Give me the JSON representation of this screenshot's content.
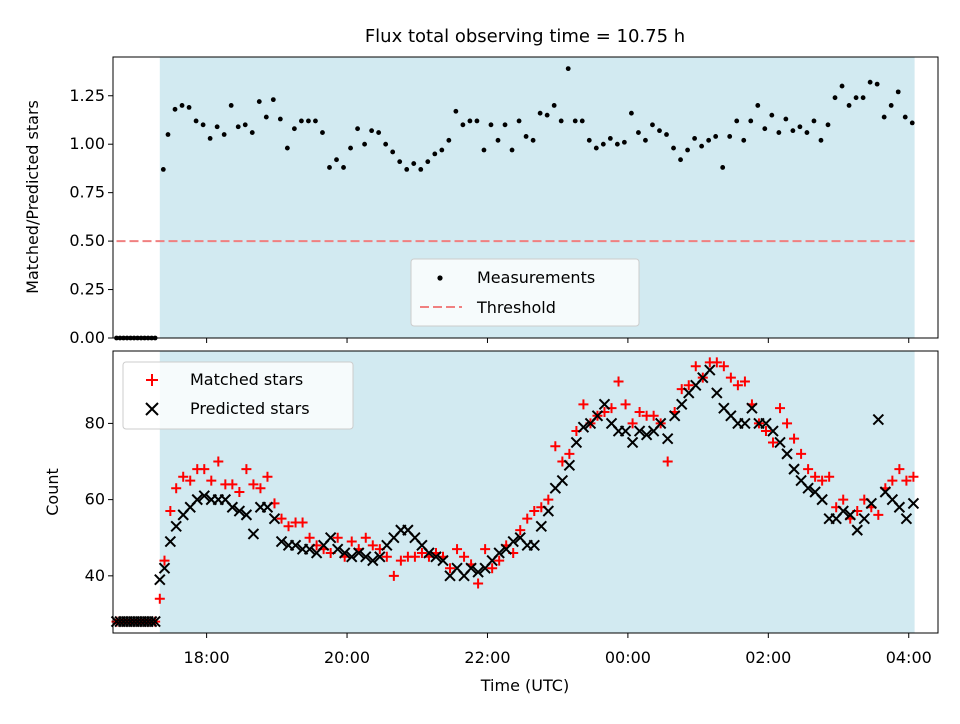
{
  "title": "Flux total observing time = 10.75 h",
  "colors": {
    "shade": "#add8e6",
    "measurement": "#000000",
    "threshold": "#f08080",
    "matched": "#ff0000",
    "predicted": "#000000"
  },
  "chart_data": [
    {
      "type": "scatter",
      "ylabel": "Matched/Predicted stars",
      "xlabel": "",
      "xlim": [
        "16:40",
        "04:25"
      ],
      "ylim": [
        0,
        1.45
      ],
      "xticks": [
        "18:00",
        "20:00",
        "22:00",
        "00:00",
        "02:00",
        "04:00"
      ],
      "yticks": [
        "0.00",
        "0.25",
        "0.50",
        "0.75",
        "1.00",
        "1.25"
      ],
      "shaded_interval": [
        "17:20",
        "04:05"
      ],
      "threshold": {
        "name": "Threshold",
        "value": 0.5,
        "x_range": [
          "16:43",
          "04:05"
        ]
      },
      "legend": {
        "position": "lower center",
        "entries": [
          "Measurements",
          "Threshold"
        ]
      },
      "series": [
        {
          "name": "Measurements",
          "x": [
            "16:43",
            "16:46",
            "16:49",
            "16:52",
            "16:55",
            "16:58",
            "17:01",
            "17:04",
            "17:07",
            "17:10",
            "17:13",
            "17:16",
            "17:23",
            "17:27",
            "17:33",
            "17:39",
            "17:45",
            "17:51",
            "17:57",
            "18:03",
            "18:09",
            "18:15",
            "18:21",
            "18:27",
            "18:33",
            "18:39",
            "18:45",
            "18:51",
            "18:57",
            "19:03",
            "19:09",
            "19:15",
            "19:21",
            "19:27",
            "19:33",
            "19:39",
            "19:45",
            "19:51",
            "19:57",
            "20:03",
            "20:09",
            "20:15",
            "20:21",
            "20:27",
            "20:33",
            "20:39",
            "20:45",
            "20:51",
            "20:57",
            "21:03",
            "21:09",
            "21:15",
            "21:21",
            "21:27",
            "21:33",
            "21:39",
            "21:45",
            "21:51",
            "21:57",
            "22:03",
            "22:09",
            "22:15",
            "22:21",
            "22:27",
            "22:33",
            "22:39",
            "22:45",
            "22:51",
            "22:57",
            "23:03",
            "23:09",
            "23:15",
            "23:21",
            "23:27",
            "23:33",
            "23:39",
            "23:45",
            "23:51",
            "23:57",
            "00:03",
            "00:09",
            "00:15",
            "00:21",
            "00:27",
            "00:33",
            "00:39",
            "00:45",
            "00:51",
            "00:57",
            "01:03",
            "01:09",
            "01:15",
            "01:21",
            "01:27",
            "01:33",
            "01:39",
            "01:45",
            "01:51",
            "01:57",
            "02:03",
            "02:09",
            "02:15",
            "02:21",
            "02:27",
            "02:33",
            "02:39",
            "02:45",
            "02:51",
            "02:57",
            "03:03",
            "03:09",
            "03:15",
            "03:21",
            "03:27",
            "03:33",
            "03:39",
            "03:45",
            "03:51",
            "03:57",
            "04:03"
          ],
          "y": [
            0,
            0,
            0,
            0,
            0,
            0,
            0,
            0,
            0,
            0,
            0,
            0,
            0.87,
            1.05,
            1.18,
            1.2,
            1.19,
            1.12,
            1.1,
            1.03,
            1.09,
            1.05,
            1.2,
            1.09,
            1.1,
            1.06,
            1.22,
            1.14,
            1.23,
            1.13,
            0.98,
            1.08,
            1.12,
            1.12,
            1.12,
            1.06,
            0.88,
            0.92,
            0.88,
            0.98,
            1.08,
            1.0,
            1.07,
            1.06,
            1.0,
            0.96,
            0.91,
            0.87,
            0.9,
            0.87,
            0.91,
            0.95,
            0.97,
            1.02,
            1.17,
            1.1,
            1.12,
            1.12,
            0.97,
            1.1,
            1.02,
            1.1,
            0.97,
            1.12,
            1.04,
            1.02,
            1.16,
            1.15,
            1.2,
            1.12,
            1.39,
            1.12,
            1.12,
            1.02,
            0.98,
            1.0,
            1.03,
            1.0,
            1.01,
            1.16,
            1.06,
            1.02,
            1.1,
            1.07,
            1.05,
            0.98,
            0.92,
            0.97,
            1.03,
            0.99,
            1.02,
            1.04,
            0.88,
            1.04,
            1.12,
            1.02,
            1.12,
            1.2,
            1.08,
            1.15,
            1.06,
            1.13,
            1.07,
            1.09,
            1.06,
            1.12,
            1.02,
            1.1,
            1.24,
            1.3,
            1.2,
            1.24,
            1.24,
            1.32,
            1.31,
            1.14,
            1.2,
            1.27,
            1.14,
            1.11
          ]
        }
      ]
    },
    {
      "type": "scatter",
      "ylabel": "Count",
      "xlabel": "Time (UTC)",
      "xlim": [
        "16:40",
        "04:25"
      ],
      "ylim": [
        25,
        99
      ],
      "xticks": [
        "18:00",
        "20:00",
        "22:00",
        "00:00",
        "02:00",
        "04:00"
      ],
      "yticks": [
        "40",
        "60",
        "80"
      ],
      "shaded_interval": [
        "17:20",
        "04:05"
      ],
      "legend": {
        "position": "upper left",
        "entries": [
          "Matched stars",
          "Predicted stars"
        ]
      },
      "series": [
        {
          "name": "Matched stars",
          "x": [
            "16:43",
            "16:46",
            "16:49",
            "16:52",
            "16:55",
            "16:58",
            "17:01",
            "17:04",
            "17:07",
            "17:10",
            "17:13",
            "17:16",
            "17:20",
            "17:24",
            "17:29",
            "17:34",
            "17:40",
            "17:46",
            "17:52",
            "17:58",
            "18:04",
            "18:10",
            "18:16",
            "18:22",
            "18:28",
            "18:34",
            "18:40",
            "18:46",
            "18:52",
            "18:58",
            "19:04",
            "19:10",
            "19:16",
            "19:22",
            "19:28",
            "19:34",
            "19:40",
            "19:46",
            "19:52",
            "19:58",
            "20:04",
            "20:10",
            "20:16",
            "20:22",
            "20:28",
            "20:34",
            "20:40",
            "20:46",
            "20:52",
            "20:58",
            "21:04",
            "21:10",
            "21:16",
            "21:22",
            "21:28",
            "21:34",
            "21:40",
            "21:46",
            "21:52",
            "21:58",
            "22:04",
            "22:10",
            "22:16",
            "22:22",
            "22:28",
            "22:34",
            "22:40",
            "22:46",
            "22:52",
            "22:58",
            "23:04",
            "23:10",
            "23:16",
            "23:22",
            "23:28",
            "23:34",
            "23:40",
            "23:46",
            "23:52",
            "23:58",
            "00:04",
            "00:10",
            "00:16",
            "00:22",
            "00:28",
            "00:34",
            "00:40",
            "00:46",
            "00:52",
            "00:58",
            "01:04",
            "01:10",
            "01:16",
            "01:22",
            "01:28",
            "01:34",
            "01:40",
            "01:46",
            "01:52",
            "01:58",
            "02:04",
            "02:10",
            "02:16",
            "02:22",
            "02:28",
            "02:34",
            "02:40",
            "02:46",
            "02:52",
            "02:58",
            "03:04",
            "03:10",
            "03:16",
            "03:22",
            "03:28",
            "03:34",
            "03:40",
            "03:46",
            "03:52",
            "03:58",
            "04:04"
          ],
          "y": [
            28,
            28,
            28,
            28,
            28,
            28,
            28,
            28,
            28,
            28,
            28,
            28,
            34,
            44,
            57,
            63,
            66,
            65,
            68,
            68,
            65,
            70,
            64,
            64,
            62,
            68,
            64,
            63,
            66,
            59,
            55,
            53,
            54,
            54,
            50,
            48,
            47,
            46,
            50,
            45,
            49,
            47,
            50,
            48,
            47,
            45,
            40,
            44,
            45,
            45,
            46,
            45,
            46,
            45,
            42,
            47,
            45,
            43,
            38,
            47,
            42,
            44,
            48,
            46,
            52,
            55,
            57,
            58,
            60,
            74,
            70,
            72,
            78,
            85,
            80,
            82,
            83,
            84,
            91,
            85,
            80,
            83,
            82,
            82,
            80,
            70,
            83,
            89,
            90,
            95,
            92,
            96,
            96,
            95,
            92,
            90,
            91,
            85,
            80,
            78,
            75,
            84,
            80,
            76,
            72,
            68,
            66,
            65,
            66,
            58,
            60,
            55,
            57,
            60,
            58,
            56,
            63,
            65,
            68,
            65,
            66
          ],
          "note": ""
        },
        {
          "name": "Predicted stars",
          "x": [
            "16:43",
            "16:46",
            "16:49",
            "16:52",
            "16:55",
            "16:58",
            "17:01",
            "17:04",
            "17:07",
            "17:10",
            "17:13",
            "17:16",
            "17:20",
            "17:24",
            "17:29",
            "17:34",
            "17:40",
            "17:46",
            "17:52",
            "17:58",
            "18:04",
            "18:10",
            "18:16",
            "18:22",
            "18:28",
            "18:34",
            "18:40",
            "18:46",
            "18:52",
            "18:58",
            "19:04",
            "19:10",
            "19:16",
            "19:22",
            "19:28",
            "19:34",
            "19:40",
            "19:46",
            "19:52",
            "19:58",
            "20:04",
            "20:10",
            "20:16",
            "20:22",
            "20:28",
            "20:34",
            "20:40",
            "20:46",
            "20:52",
            "20:58",
            "21:04",
            "21:10",
            "21:16",
            "21:22",
            "21:28",
            "21:34",
            "21:40",
            "21:46",
            "21:52",
            "21:58",
            "22:04",
            "22:10",
            "22:16",
            "22:22",
            "22:28",
            "22:34",
            "22:40",
            "22:46",
            "22:52",
            "22:58",
            "23:04",
            "23:10",
            "23:16",
            "23:22",
            "23:28",
            "23:34",
            "23:40",
            "23:46",
            "23:52",
            "23:58",
            "00:04",
            "00:10",
            "00:16",
            "00:22",
            "00:28",
            "00:34",
            "00:40",
            "00:46",
            "00:52",
            "00:58",
            "01:04",
            "01:10",
            "01:16",
            "01:22",
            "01:28",
            "01:34",
            "01:40",
            "01:46",
            "01:52",
            "01:58",
            "02:04",
            "02:10",
            "02:16",
            "02:22",
            "02:28",
            "02:34",
            "02:40",
            "02:46",
            "02:52",
            "02:58",
            "03:04",
            "03:10",
            "03:16",
            "03:22",
            "03:28",
            "03:34",
            "03:40",
            "03:46",
            "03:52",
            "03:58",
            "04:04"
          ],
          "y": [
            28,
            28,
            28,
            28,
            28,
            28,
            28,
            28,
            28,
            28,
            28,
            28,
            39,
            42,
            49,
            53,
            56,
            58,
            60,
            61,
            60,
            60,
            60,
            58,
            57,
            56,
            51,
            58,
            58,
            55,
            49,
            48,
            48,
            47,
            47,
            46,
            48,
            50,
            47,
            46,
            45,
            46,
            45,
            44,
            45,
            48,
            50,
            52,
            52,
            50,
            48,
            46,
            45,
            44,
            40,
            42,
            40,
            42,
            41,
            42,
            44,
            46,
            47,
            49,
            50,
            48,
            48,
            53,
            57,
            63,
            65,
            69,
            75,
            79,
            80,
            82,
            85,
            80,
            78,
            78,
            75,
            78,
            77,
            78,
            80,
            76,
            82,
            85,
            88,
            90,
            92,
            94,
            88,
            84,
            82,
            80,
            80,
            84,
            80,
            80,
            78,
            75,
            72,
            68,
            65,
            63,
            62,
            60,
            55,
            55,
            57,
            56,
            52,
            55,
            59,
            81,
            62,
            60,
            58,
            55,
            59
          ]
        }
      ]
    }
  ]
}
